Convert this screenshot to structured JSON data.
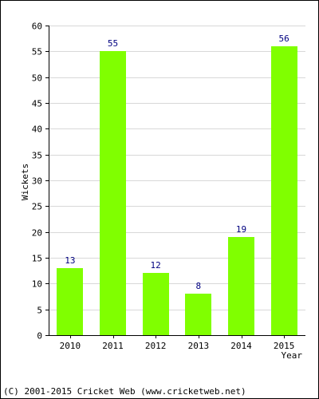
{
  "colors": {
    "bar": "#80ff00",
    "data_label": "#000080",
    "grid": "#d8d8d8",
    "axis": "#000000",
    "text": "#000000"
  },
  "footer": {
    "copyright": "(C) 2001-2015 Cricket Web (www.cricketweb.net)"
  },
  "chart_data": {
    "type": "bar",
    "title": "",
    "xlabel": "Year",
    "ylabel": "Wickets",
    "categories": [
      "2010",
      "2011",
      "2012",
      "2013",
      "2014",
      "2015"
    ],
    "values": [
      13,
      55,
      12,
      8,
      19,
      56
    ],
    "data_labels": [
      "13",
      "55",
      "12",
      "8",
      "19",
      "56"
    ],
    "ylim": [
      0,
      60
    ],
    "yticks": [
      0,
      5,
      10,
      15,
      20,
      25,
      30,
      35,
      40,
      45,
      50,
      55,
      60
    ],
    "grid": true,
    "legend": "none"
  }
}
